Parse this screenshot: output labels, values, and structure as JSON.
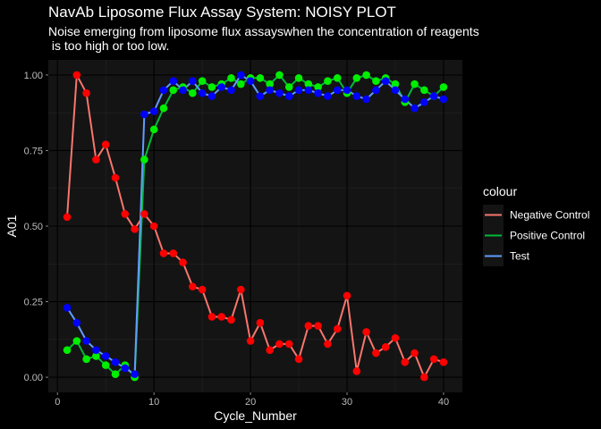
{
  "chart_data": {
    "type": "line",
    "title": "NavAb Liposome Flux Assay System: NOISY PLOT",
    "subtitle_lines": [
      "Noise emerging from liposome flux assayswhen the concentration of reagents",
      " is too high or too low."
    ],
    "xlabel": "Cycle_Number",
    "ylabel": "A01",
    "xlim": [
      -0.95,
      41.95
    ],
    "ylim": [
      -0.05,
      1.05
    ],
    "x_ticks": [
      0,
      10,
      20,
      30,
      40
    ],
    "x_tick_labels": [
      "0",
      "10",
      "20",
      "30",
      "40"
    ],
    "y_ticks": [
      0,
      0.25,
      0.5,
      0.75,
      1
    ],
    "y_tick_labels": [
      "0.00",
      "0.25",
      "0.50",
      "0.75",
      "1.00"
    ],
    "grid": true,
    "legend": {
      "title": "colour",
      "position": "right",
      "entries": [
        "Negative Control",
        "Positive Control",
        "Test"
      ]
    },
    "series": [
      {
        "name": "Negative Control",
        "line_color": "#F8766D",
        "point_color": "#FF0000",
        "x": [
          1,
          2,
          3,
          4,
          5,
          6,
          7,
          8,
          9,
          10,
          11,
          12,
          13,
          14,
          15,
          16,
          17,
          18,
          19,
          20,
          21,
          22,
          23,
          24,
          25,
          26,
          27,
          28,
          29,
          30,
          31,
          32,
          33,
          34,
          35,
          36,
          37,
          38,
          39,
          40
        ],
        "y": [
          0.53,
          1.0,
          0.94,
          0.72,
          0.77,
          0.66,
          0.54,
          0.49,
          0.54,
          0.5,
          0.41,
          0.41,
          0.38,
          0.3,
          0.29,
          0.2,
          0.2,
          0.19,
          0.29,
          0.12,
          0.18,
          0.09,
          0.11,
          0.11,
          0.06,
          0.17,
          0.17,
          0.11,
          0.16,
          0.27,
          0.02,
          0.15,
          0.08,
          0.1,
          0.13,
          0.05,
          0.08,
          0.0,
          0.06,
          0.05
        ]
      },
      {
        "name": "Positive Control",
        "line_color": "#00BA38",
        "point_color": "#00EE00",
        "x": [
          1,
          2,
          3,
          4,
          5,
          6,
          7,
          8,
          9,
          10,
          11,
          12,
          13,
          14,
          15,
          16,
          17,
          18,
          19,
          20,
          21,
          22,
          23,
          24,
          25,
          26,
          27,
          28,
          29,
          30,
          31,
          32,
          33,
          34,
          35,
          36,
          37,
          38,
          39,
          40
        ],
        "y": [
          0.09,
          0.12,
          0.06,
          0.07,
          0.04,
          0.01,
          0.04,
          0.0,
          0.72,
          0.82,
          0.89,
          0.95,
          0.96,
          0.94,
          0.98,
          0.96,
          0.97,
          0.99,
          0.97,
          0.99,
          0.99,
          0.97,
          1.0,
          0.96,
          0.99,
          0.97,
          0.96,
          0.98,
          0.99,
          0.94,
          0.99,
          1.0,
          0.98,
          0.99,
          0.97,
          0.91,
          0.97,
          0.95,
          0.93,
          0.96
        ]
      },
      {
        "name": "Test",
        "line_color": "#619CFF",
        "point_color": "#0000FF",
        "x": [
          1,
          2,
          3,
          4,
          5,
          6,
          7,
          8,
          9,
          10,
          11,
          12,
          13,
          14,
          15,
          16,
          17,
          18,
          19,
          20,
          21,
          22,
          23,
          24,
          25,
          26,
          27,
          28,
          29,
          30,
          31,
          32,
          33,
          34,
          35,
          36,
          37,
          38,
          39,
          40
        ],
        "y": [
          0.23,
          0.18,
          0.12,
          0.09,
          0.07,
          0.05,
          0.03,
          0.01,
          0.87,
          0.88,
          0.95,
          0.98,
          0.95,
          0.98,
          0.94,
          0.93,
          0.96,
          0.95,
          1.0,
          0.98,
          0.93,
          0.95,
          0.94,
          0.93,
          0.95,
          0.95,
          0.94,
          0.93,
          0.95,
          0.95,
          0.93,
          0.92,
          0.95,
          0.98,
          0.95,
          0.92,
          0.89,
          0.91,
          0.93,
          0.92
        ]
      }
    ]
  }
}
